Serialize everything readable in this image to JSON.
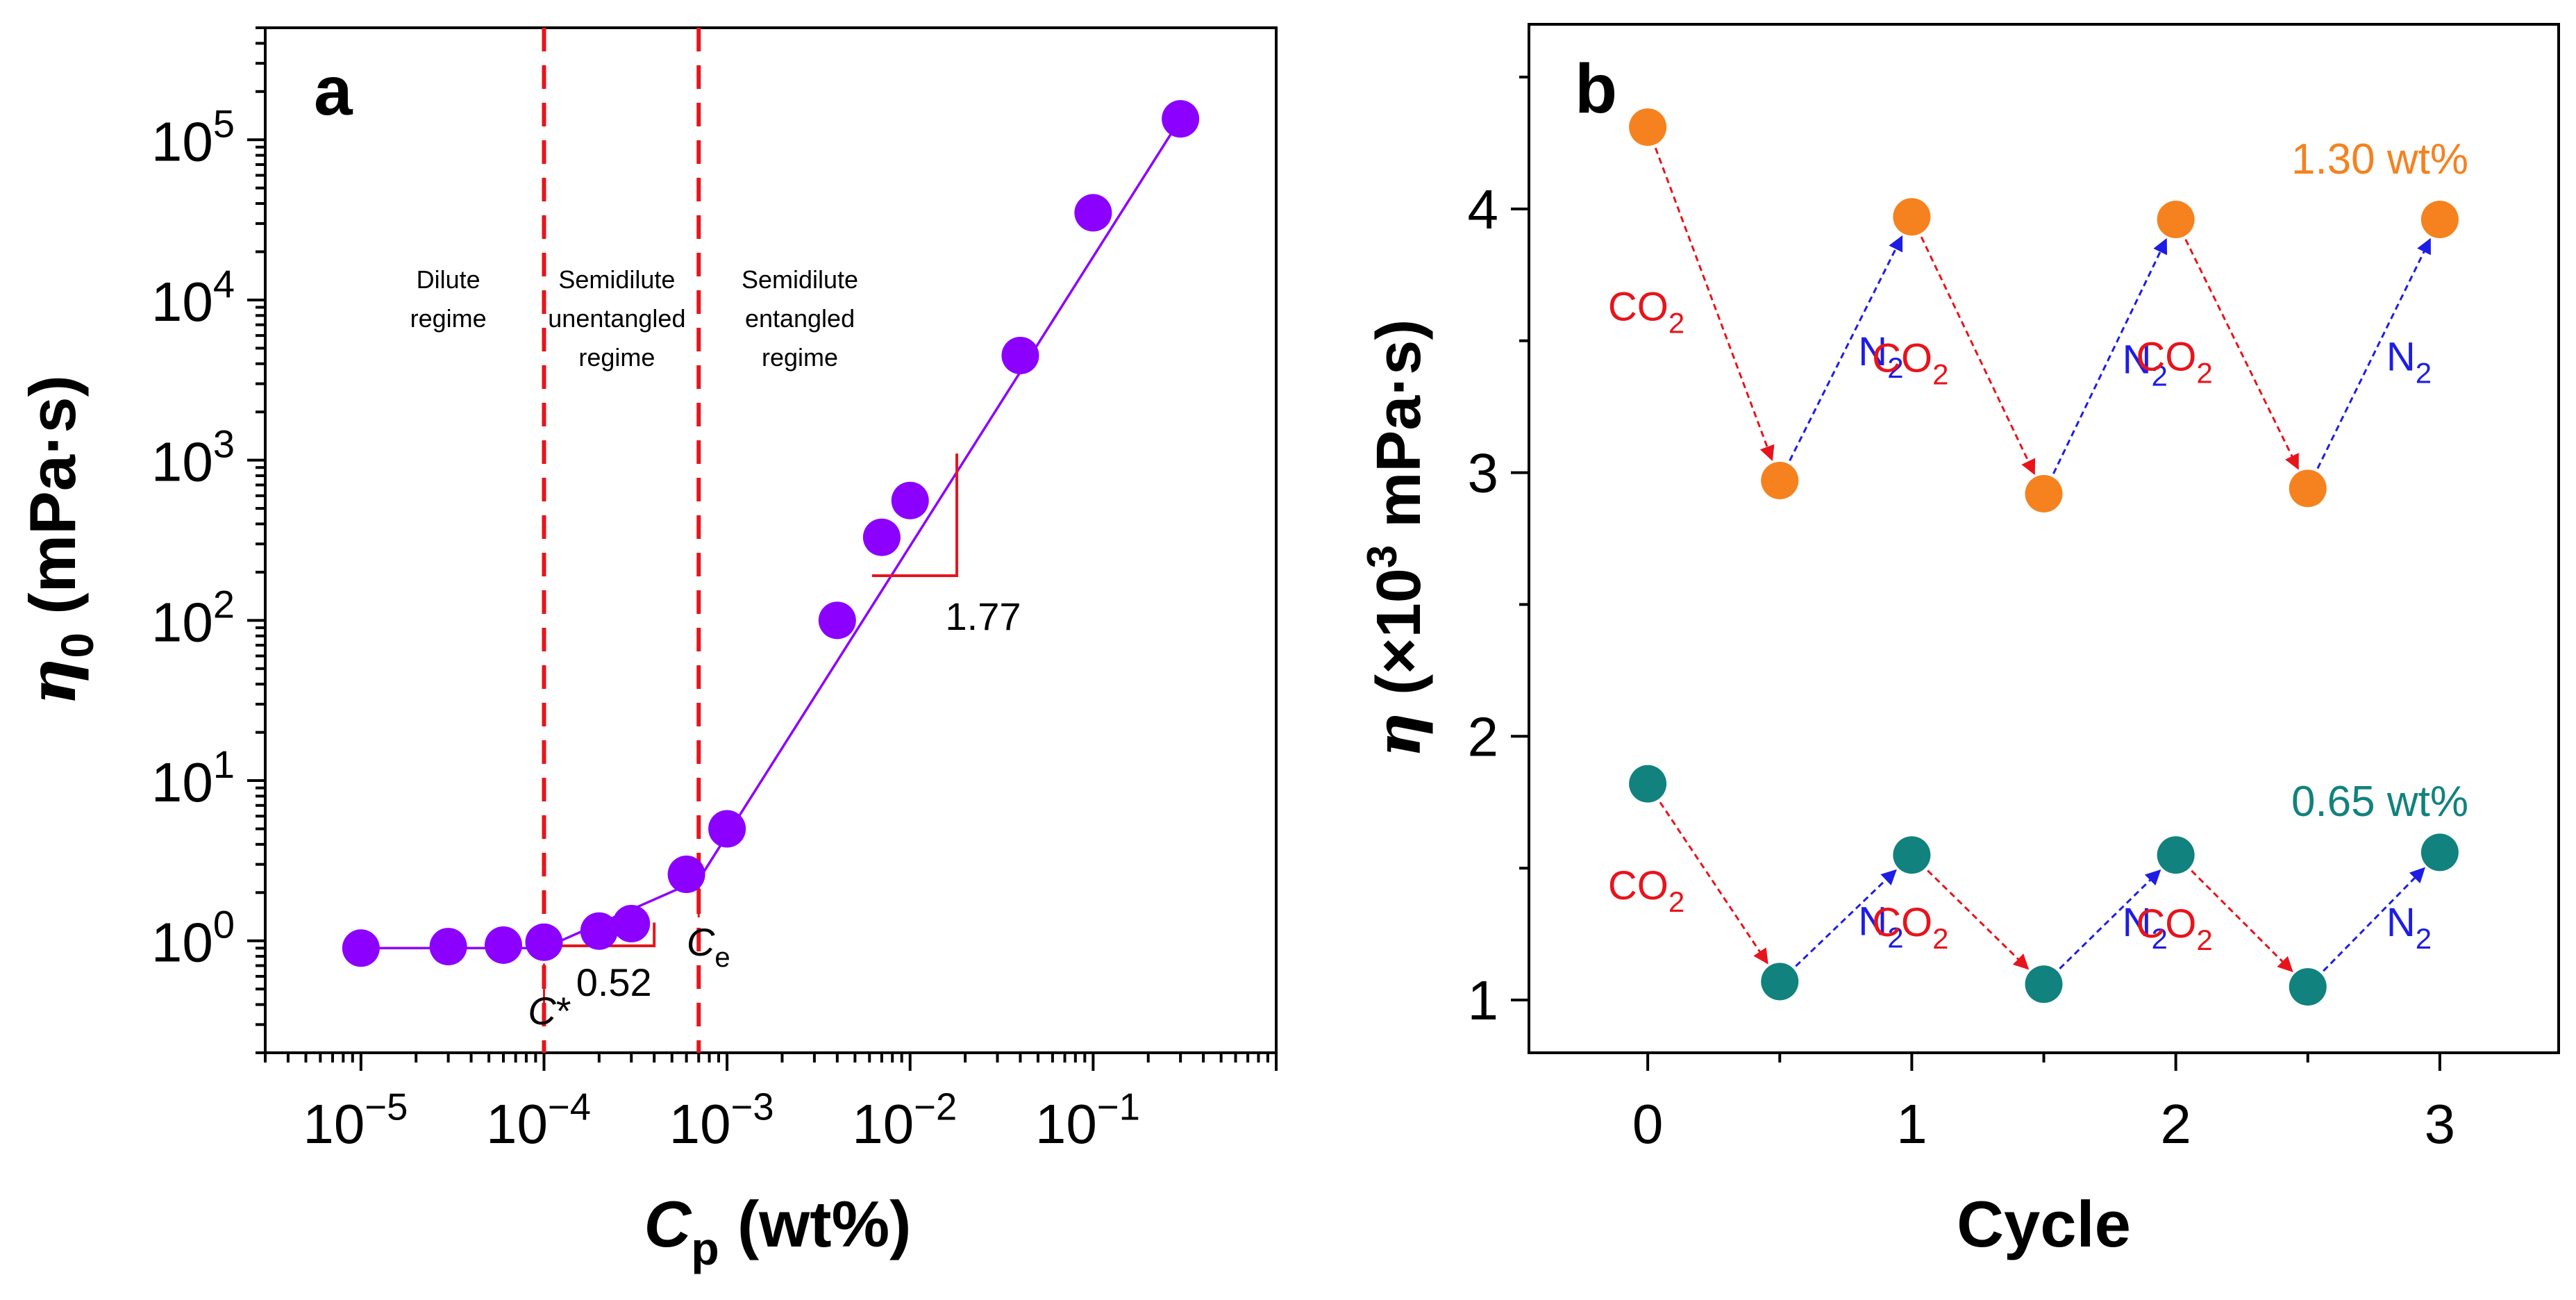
{
  "chart_data": [
    {
      "panel_label": "a",
      "type": "scatter",
      "title": "",
      "xscale": "log",
      "yscale": "log",
      "xlabel": {
        "symbol": "C",
        "sub": "p",
        "text": " (wt%)"
      },
      "ylabel": {
        "symbol": "η",
        "sub": "0",
        "text": " (mPa·s)"
      },
      "xlim": [
        3e-06,
        1
      ],
      "ylim": [
        0.2,
        500000
      ],
      "xticks": [
        {
          "value": 1e-05,
          "base": "10",
          "exp": "−5"
        },
        {
          "value": 0.0001,
          "base": "10",
          "exp": "−4"
        },
        {
          "value": 0.001,
          "base": "10",
          "exp": "−3"
        },
        {
          "value": 0.01,
          "base": "10",
          "exp": "−2"
        },
        {
          "value": 0.1,
          "base": "10",
          "exp": "−1"
        }
      ],
      "yticks": [
        {
          "value": 1,
          "base": "10",
          "exp": "0"
        },
        {
          "value": 10,
          "base": "10",
          "exp": "1"
        },
        {
          "value": 100,
          "base": "10",
          "exp": "2"
        },
        {
          "value": 1000,
          "base": "10",
          "exp": "3"
        },
        {
          "value": 10000,
          "base": "10",
          "exp": "4"
        },
        {
          "value": 100000,
          "base": "10",
          "exp": "5"
        }
      ],
      "grid": false,
      "marker_color": "#8B00FF",
      "line_color": "#8B00FF",
      "ref_color": "#E8141B",
      "x": [
        1e-05,
        3e-05,
        6e-05,
        0.0001,
        0.0002,
        0.0003,
        0.0006,
        0.001,
        0.004,
        0.007,
        0.01,
        0.04,
        0.1,
        0.3
      ],
      "y": [
        0.9,
        0.92,
        0.94,
        0.98,
        1.15,
        1.28,
        2.6,
        5.0,
        100,
        330,
        560,
        4500,
        35000,
        135000
      ],
      "fit_lines": [
        {
          "name": "dilute",
          "x": [
            1e-05,
            0.0001
          ],
          "y": [
            0.9,
            0.9
          ]
        },
        {
          "name": "semidilute-unentangled",
          "x": [
            0.0001,
            0.0007
          ],
          "y": [
            0.9,
            2.4
          ]
        },
        {
          "name": "semidilute-entangled",
          "x": [
            0.0007,
            0.3
          ],
          "y": [
            2.4,
            135000
          ]
        }
      ],
      "vlines": [
        0.0001,
        0.0007
      ],
      "regimes": [
        {
          "x": 3e-05,
          "lines": [
            "Dilute",
            "regime"
          ]
        },
        {
          "x": 0.00025,
          "lines": [
            "Semidilute",
            "unentangled",
            "regime"
          ]
        },
        {
          "x": 0.0025,
          "lines": [
            "Semidilute",
            "entangled",
            "regime"
          ]
        }
      ],
      "slopes": [
        {
          "value": "0.52",
          "triangle": {
            "x0": 0.0001,
            "x1": 0.0004,
            "y0": 0.93,
            "y1": 1.3
          }
        },
        {
          "value": "1.77",
          "triangle": {
            "x0": 0.0062,
            "x1": 0.018,
            "y0": 190,
            "y1": 1100
          }
        }
      ],
      "markers": [
        {
          "name": "C-star",
          "x": 0.0001,
          "y_from": 0.3,
          "y_to": 0.72,
          "symbol": "C",
          "suffix": "*",
          "sub": ""
        },
        {
          "name": "C-e",
          "x": 0.0007,
          "y_from": 1.4,
          "y_to": 2.2,
          "symbol": "C",
          "suffix": "",
          "sub": "e"
        }
      ]
    },
    {
      "panel_label": "b",
      "type": "scatter",
      "title": "",
      "xlabel": "Cycle",
      "ylabel": {
        "symbol": "η",
        "text": " (×10",
        "exp": "3",
        "text2": " mPa·s)"
      },
      "xlim": [
        -0.45,
        3.45
      ],
      "ylim": [
        0.8,
        4.7
      ],
      "xticks": [
        0,
        1,
        2,
        3
      ],
      "yticks": [
        1,
        2,
        3,
        4
      ],
      "grid": false,
      "series": [
        {
          "name": "1.30 wt%",
          "color": "#F5821F",
          "x": [
            0,
            0.5,
            1,
            1.5,
            2,
            2.5,
            3
          ],
          "y": [
            4.31,
            2.97,
            3.97,
            2.92,
            3.96,
            2.94,
            3.96
          ]
        },
        {
          "name": "0.65 wt%",
          "color": "#11827D",
          "x": [
            0,
            0.5,
            1,
            1.5,
            2,
            2.5,
            3
          ],
          "y": [
            1.82,
            1.07,
            1.55,
            1.06,
            1.55,
            1.05,
            1.56
          ]
        }
      ],
      "gas_labels": {
        "co2": {
          "text": "CO",
          "sub": "2",
          "color": "#E8141B"
        },
        "n2": {
          "text": "N",
          "sub": "2",
          "color": "#1D1DE6"
        }
      }
    }
  ]
}
